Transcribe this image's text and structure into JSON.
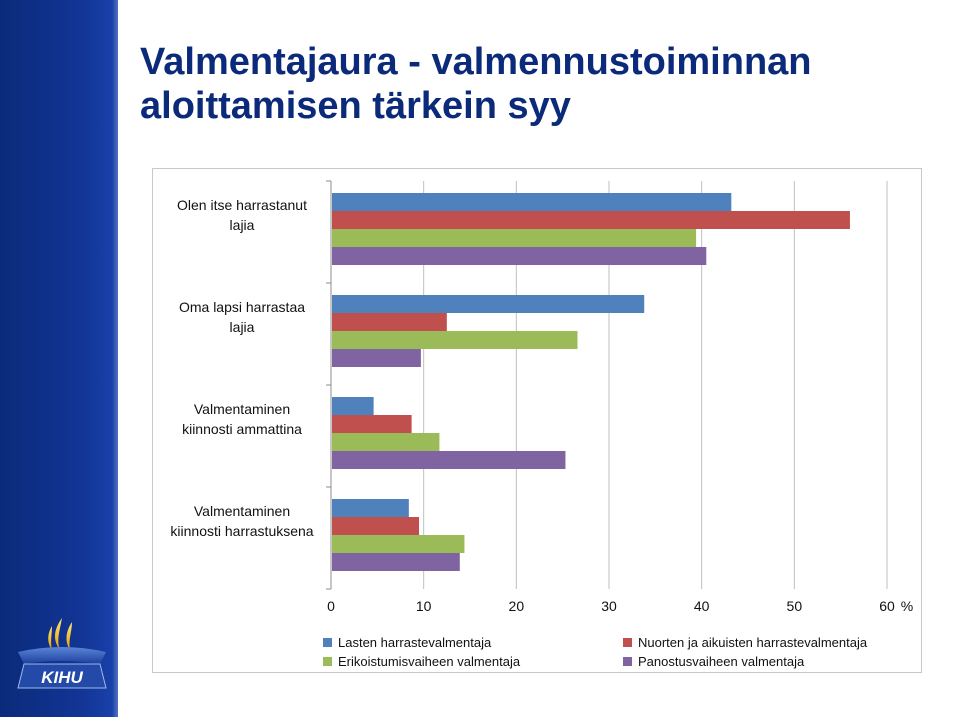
{
  "slide": {
    "title_line1": "Valmentajaura - valmennustoiminnan",
    "title_line2": "aloittamisen tärkein syy",
    "logo_text": "KIHU",
    "colors": {
      "sidebar": "#123596",
      "title": "#0b2a7a"
    }
  },
  "chart_data": {
    "type": "bar",
    "orientation": "horizontal",
    "title": "",
    "xlabel": "",
    "ylabel": "",
    "xlim": [
      0,
      60
    ],
    "x_unit": "%",
    "x_ticks": [
      0,
      10,
      20,
      30,
      40,
      50,
      60
    ],
    "grid": true,
    "legend_position": "bottom",
    "categories": [
      "Olen itse harrastanut\nlajia",
      "Oma lapsi harrastaa\nlajia",
      "Valmentaminen\nkiinnosti ammattina",
      "Valmentaminen\nkiinnosti harrastuksena"
    ],
    "series": [
      {
        "name": "Lasten harrastevalmentaja",
        "color": "#4f81bd",
        "values": [
          43.2,
          33.8,
          4.6,
          8.4
        ]
      },
      {
        "name": "Nuorten ja aikuisten harrastevalmentaja",
        "color": "#c0504d",
        "values": [
          56.0,
          12.5,
          8.7,
          9.5
        ]
      },
      {
        "name": "Erikoistumisvaiheen valmentaja",
        "color": "#9bbb59",
        "values": [
          39.4,
          26.6,
          11.7,
          14.4
        ]
      },
      {
        "name": "Panostusvaiheen valmentaja",
        "color": "#8064a2",
        "values": [
          40.5,
          9.7,
          25.3,
          13.9
        ]
      }
    ]
  }
}
